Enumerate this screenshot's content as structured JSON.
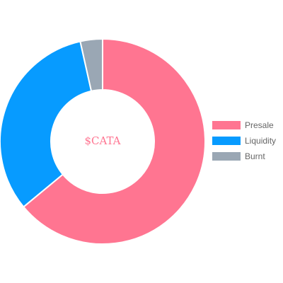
{
  "chart_data": {
    "type": "pie",
    "variant": "doughnut",
    "center_label": "$CATA",
    "center_label_color": "#ff7591",
    "categories": [
      "Presale",
      "Liquidity",
      "Burnt"
    ],
    "values": [
      64,
      32.5,
      3.5
    ],
    "colors": [
      "#ff7591",
      "#079bff",
      "#9aa7b4"
    ],
    "legend_position": "right"
  }
}
